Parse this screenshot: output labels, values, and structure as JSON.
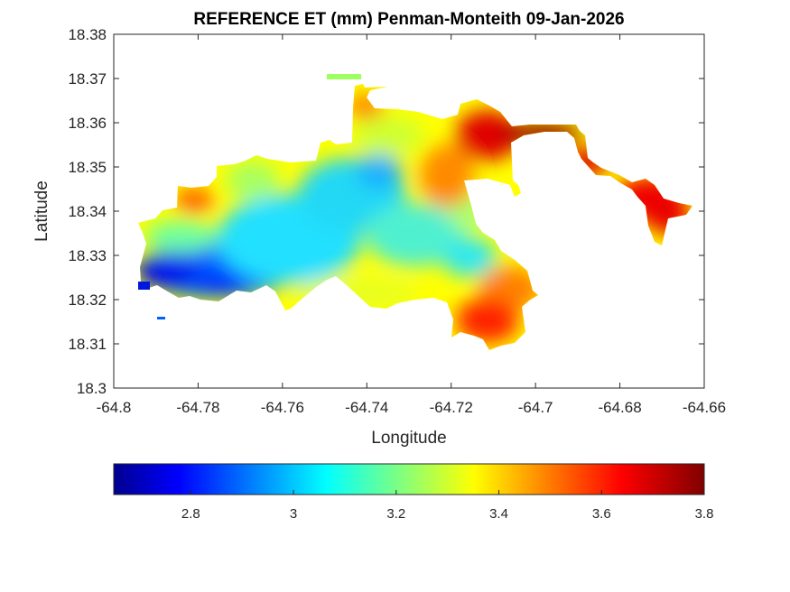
{
  "chart_data": {
    "type": "heatmap",
    "title": "REFERENCE ET (mm) Penman-Monteith 09-Jan-2026",
    "xlabel": "Longitude",
    "ylabel": "Latitude",
    "xlim": [
      -64.8,
      -64.66
    ],
    "ylim": [
      18.3,
      18.38
    ],
    "x_ticks": [
      "-64.8",
      "-64.78",
      "-64.76",
      "-64.74",
      "-64.72",
      "-64.7",
      "-64.68",
      "-64.66"
    ],
    "y_ticks": [
      "18.3",
      "18.31",
      "18.32",
      "18.33",
      "18.34",
      "18.35",
      "18.36",
      "18.37",
      "18.38"
    ],
    "grid": false,
    "colormap": "jet",
    "colorbar": {
      "placement": "bottom",
      "range": [
        2.65,
        3.8
      ],
      "ticks": [
        "2.8",
        "3",
        "3.2",
        "3.4",
        "3.6",
        "3.8"
      ]
    },
    "value_samples": [
      {
        "lon": -64.79,
        "lat": 18.323,
        "value": 2.68
      },
      {
        "lon": -64.775,
        "lat": 18.324,
        "value": 2.85
      },
      {
        "lon": -64.765,
        "lat": 18.33,
        "value": 3.02
      },
      {
        "lon": -64.745,
        "lat": 18.345,
        "value": 3.05
      },
      {
        "lon": -64.74,
        "lat": 18.348,
        "value": 3.0
      },
      {
        "lon": -64.73,
        "lat": 18.335,
        "value": 3.15
      },
      {
        "lon": -64.75,
        "lat": 18.325,
        "value": 3.35
      },
      {
        "lon": -64.785,
        "lat": 18.343,
        "value": 3.6
      },
      {
        "lon": -64.738,
        "lat": 18.362,
        "value": 3.5
      },
      {
        "lon": -64.712,
        "lat": 18.36,
        "value": 3.75
      },
      {
        "lon": -64.71,
        "lat": 18.315,
        "value": 3.65
      },
      {
        "lon": -64.695,
        "lat": 18.358,
        "value": 3.8
      },
      {
        "lon": -64.67,
        "lat": 18.339,
        "value": 3.68
      }
    ]
  },
  "colors": {
    "jet_stops": [
      "#00008f",
      "#0000ff",
      "#00ffff",
      "#ffff00",
      "#ff0000",
      "#800000"
    ],
    "ocean": "#ffffff"
  }
}
